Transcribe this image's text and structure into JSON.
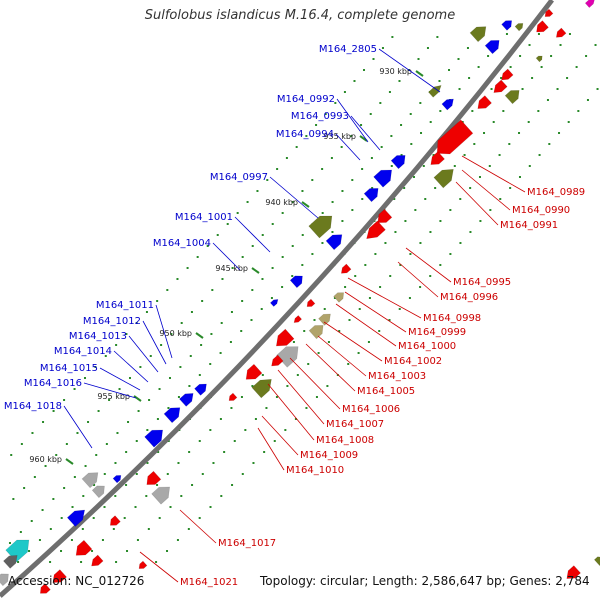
{
  "title": "Sulfolobus islandicus M.16.4, complete genome",
  "footer": {
    "accession": "Accession: NC_012726",
    "topology": "Topology: circular; Length: 2,586,647 bp; Genes: 2,784"
  },
  "colors": {
    "backbone": "#6e6e6e",
    "forward_cds": "#0000ee",
    "reverse_cds": "#ee0000",
    "olive_feature": "#6b7a1e",
    "tan_feature": "#b0a36a",
    "grey_feature": "#a8a8a8",
    "cyan_feature": "#1ec8c8",
    "tick_green": "#2a8a2a",
    "left_label": "#0000cc",
    "right_label": "#cc0000"
  },
  "scale_ticks": [
    "930 kbp",
    "935 kbp",
    "940 kbp",
    "945 kbp",
    "950 kbp",
    "955 kbp",
    "960 kbp"
  ],
  "left_labels": [
    "M164_2805",
    "M164_0992",
    "M164_0993",
    "M164_0994",
    "M164_0997",
    "M164_1001",
    "M164_1004",
    "M164_1011",
    "M164_1012",
    "M164_1013",
    "M164_1014",
    "M164_1015",
    "M164_1016",
    "M164_1018"
  ],
  "right_labels": [
    "M164_0989",
    "M164_0990",
    "M164_0991",
    "M164_0995",
    "M164_0996",
    "M164_0998",
    "M164_0999",
    "M164_1000",
    "M164_1002",
    "M164_1003",
    "M164_1005",
    "M164_1006",
    "M164_1007",
    "M164_1008",
    "M164_1009",
    "M164_1010",
    "M164_1017",
    "M164_1021"
  ]
}
